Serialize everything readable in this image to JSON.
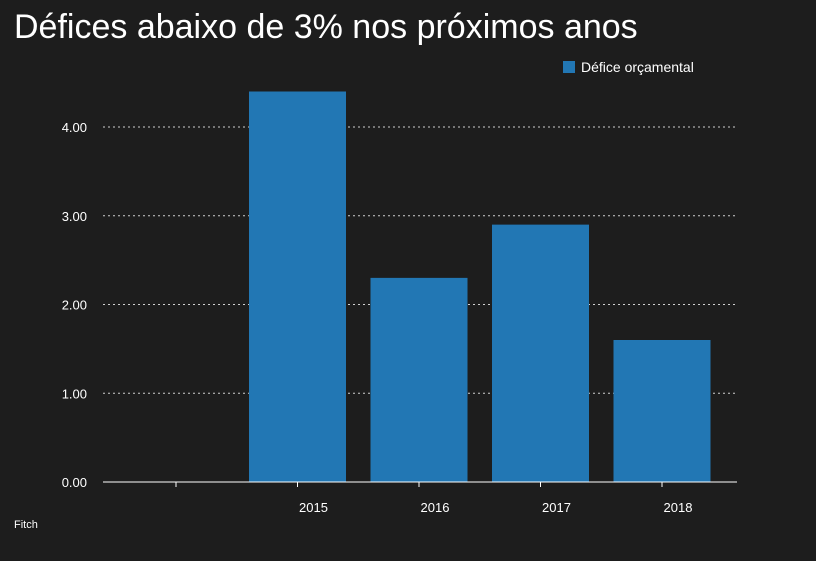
{
  "title": "Défices abaixo de 3% nos próximos anos",
  "source": "Fitch",
  "colors": {
    "background": "#1d1d1d",
    "bar": "#2277b4",
    "text": "#ffffff",
    "grid": "#cfcfcf"
  },
  "chart_data": {
    "type": "bar",
    "categories": [
      "",
      "2015",
      "2016",
      "2017",
      "2018"
    ],
    "series": [
      {
        "name": "Défice orçamental",
        "values": [
          null,
          4.4,
          2.3,
          2.9,
          1.6
        ]
      }
    ],
    "y_ticks": [
      "0.00",
      "1.00",
      "2.00",
      "3.00",
      "4.00"
    ],
    "ylim": [
      0,
      4.4
    ],
    "grid": true,
    "legend_position": "top-right"
  }
}
